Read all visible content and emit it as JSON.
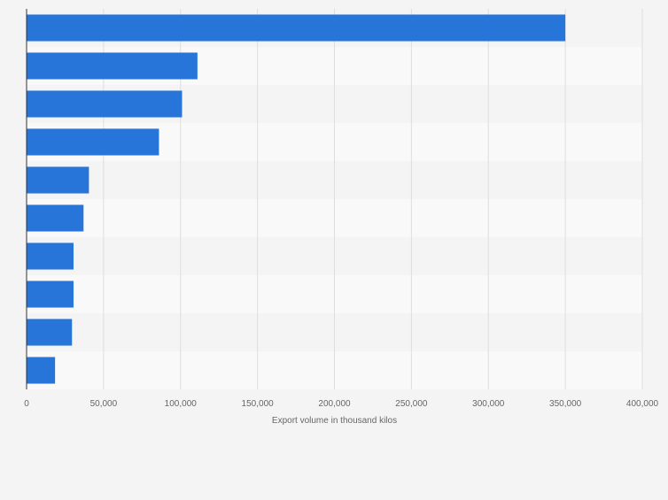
{
  "chart_data": {
    "type": "bar",
    "orientation": "horizontal",
    "title": "",
    "xlabel": "Export volume in thousand kilos",
    "ylabel": "",
    "xlim": [
      0,
      400000
    ],
    "ticks": [
      0,
      50000,
      100000,
      150000,
      200000,
      250000,
      300000,
      350000,
      400000
    ],
    "tick_labels": [
      "0",
      "50,000",
      "100,000",
      "150,000",
      "200,000",
      "250,000",
      "300,000",
      "350,000",
      "400,000"
    ],
    "categories": [
      "",
      "",
      "",
      "",
      "",
      "",
      "",
      "",
      "",
      ""
    ],
    "values": [
      350000,
      111000,
      101000,
      86000,
      40500,
      37000,
      30500,
      30500,
      29500,
      18500
    ],
    "grid": true,
    "bar_color": "#2875d9",
    "band_colors": [
      "#f4f4f4",
      "#f9f9f9"
    ],
    "grid_color": "#dedede",
    "axis_color": "#333333",
    "tick_label_color": "#666666"
  }
}
